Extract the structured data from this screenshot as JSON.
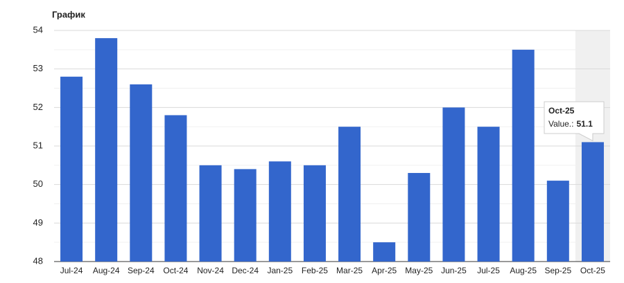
{
  "chart_data": {
    "type": "bar",
    "title": "График",
    "categories": [
      "Jul-24",
      "Aug-24",
      "Sep-24",
      "Oct-24",
      "Nov-24",
      "Dec-24",
      "Jan-25",
      "Feb-25",
      "Mar-25",
      "Apr-25",
      "May-25",
      "Jun-25",
      "Jul-25",
      "Aug-25",
      "Sep-25",
      "Oct-25"
    ],
    "values": [
      52.8,
      53.8,
      52.6,
      51.8,
      50.5,
      50.4,
      50.6,
      50.5,
      51.5,
      48.5,
      50.3,
      52.0,
      51.5,
      53.5,
      50.1,
      51.1
    ],
    "color": "#3366cc",
    "ylim": [
      48,
      54
    ],
    "yticks": [
      48,
      49,
      50,
      51,
      52,
      53,
      54
    ],
    "grid": true,
    "tooltip": {
      "index": 15,
      "label": "Value.:"
    }
  }
}
